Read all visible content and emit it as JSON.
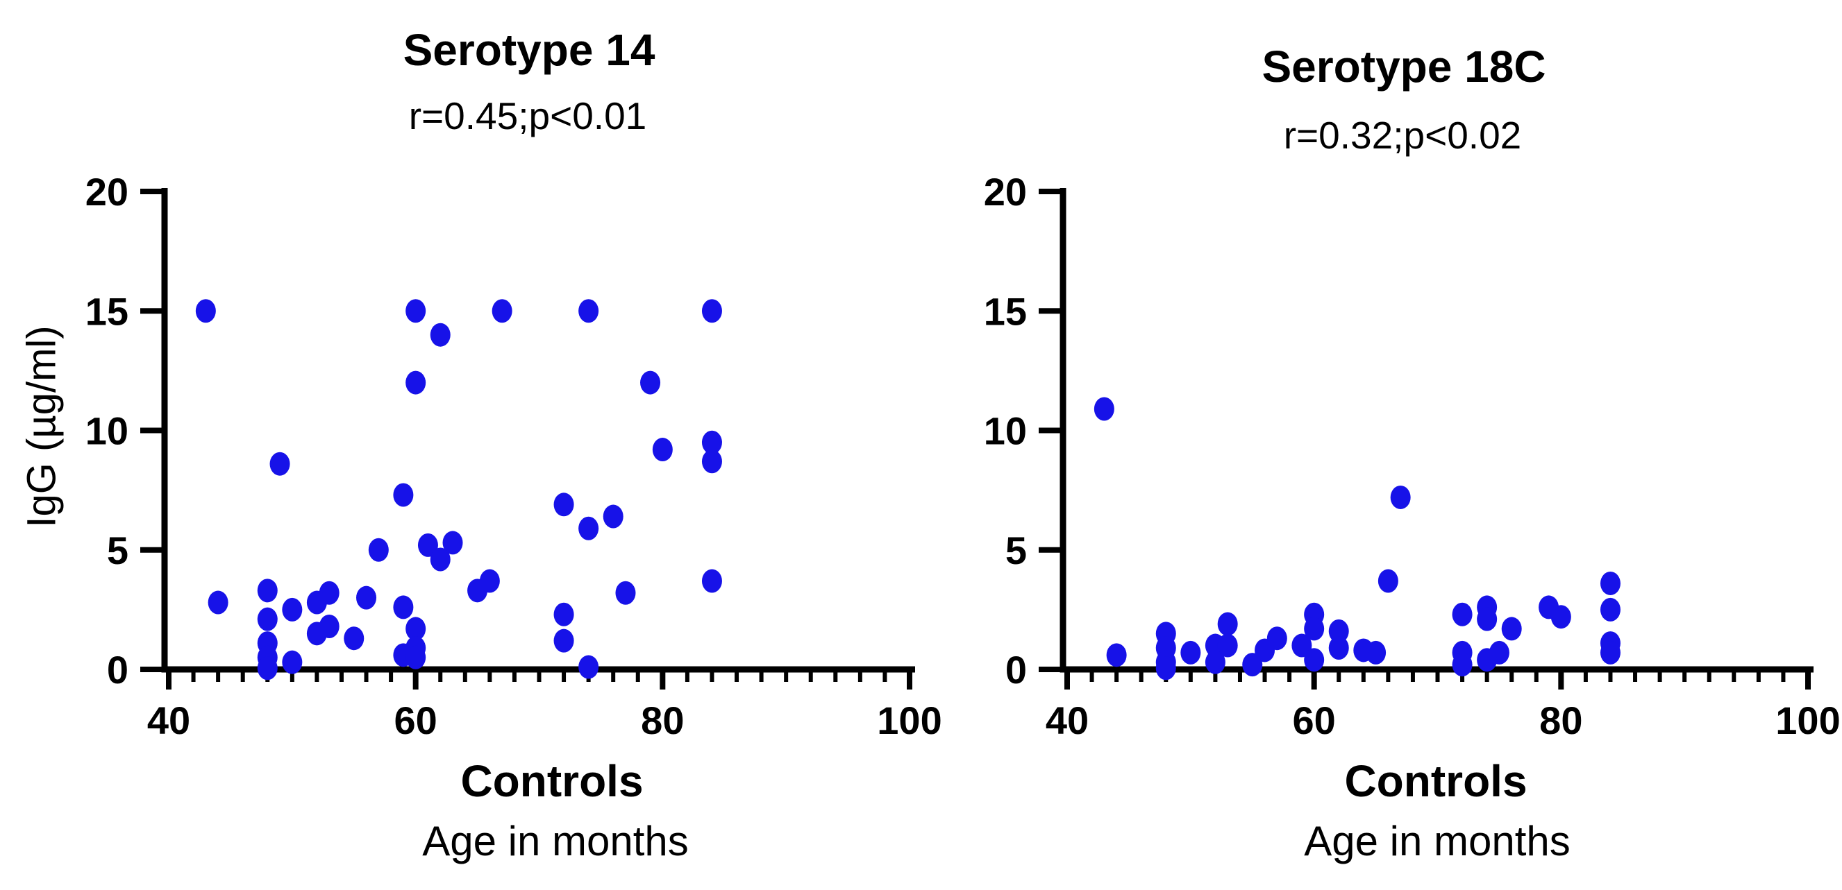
{
  "page": {
    "background": "#ffffff",
    "description": "Two scatter plots of anti-pneumococcal IgG versus age in control children"
  },
  "colors": {
    "dot": "#1712e8",
    "axis": "#000000",
    "text": "#000000"
  },
  "chart_data": [
    {
      "type": "scatter",
      "title": "Serotype 14",
      "subtitle": "r=0.45;p<0.01",
      "xlabel_primary": "Controls",
      "xlabel_secondary": "Age in months",
      "ylabel": "IgG (µg/ml)",
      "xlim": [
        40,
        100
      ],
      "ylim": [
        0,
        20
      ],
      "x_major_ticks": [
        40,
        60,
        80,
        100
      ],
      "x_minor_tick_step": 2,
      "y_major_ticks": [
        0,
        5,
        10,
        15,
        20
      ],
      "grid": false,
      "legend": "none",
      "marker": "filled-circle",
      "points": [
        [
          43,
          15
        ],
        [
          60,
          15
        ],
        [
          67,
          15
        ],
        [
          74,
          15
        ],
        [
          84,
          15
        ],
        [
          62,
          14
        ],
        [
          60,
          12
        ],
        [
          79,
          12
        ],
        [
          84,
          9.5
        ],
        [
          80,
          9.2
        ],
        [
          84,
          8.7
        ],
        [
          49,
          8.6
        ],
        [
          59,
          7.3
        ],
        [
          72,
          6.9
        ],
        [
          76,
          6.4
        ],
        [
          74,
          5.9
        ],
        [
          63,
          5.3
        ],
        [
          61,
          5.2
        ],
        [
          57,
          5.0
        ],
        [
          62,
          4.6
        ],
        [
          66,
          3.7
        ],
        [
          84,
          3.7
        ],
        [
          65,
          3.3
        ],
        [
          48,
          3.3
        ],
        [
          53,
          3.2
        ],
        [
          77,
          3.2
        ],
        [
          56,
          3.0
        ],
        [
          52,
          2.8
        ],
        [
          44,
          2.8
        ],
        [
          59,
          2.6
        ],
        [
          50,
          2.5
        ],
        [
          72,
          2.3
        ],
        [
          48,
          2.1
        ],
        [
          53,
          1.8
        ],
        [
          60,
          1.7
        ],
        [
          52,
          1.5
        ],
        [
          55,
          1.3
        ],
        [
          72,
          1.2
        ],
        [
          48,
          1.1
        ],
        [
          60,
          0.9
        ],
        [
          59,
          0.6
        ],
        [
          48,
          0.5
        ],
        [
          60,
          0.5
        ],
        [
          50,
          0.3
        ],
        [
          74,
          0.1
        ],
        [
          48,
          0.05
        ]
      ]
    },
    {
      "type": "scatter",
      "title": "Serotype 18C",
      "subtitle": "r=0.32;p<0.02",
      "xlabel_primary": "Controls",
      "xlabel_secondary": "Age in months",
      "ylabel": "",
      "xlim": [
        40,
        100
      ],
      "ylim": [
        0,
        20
      ],
      "x_major_ticks": [
        40,
        60,
        80,
        100
      ],
      "x_minor_tick_step": 2,
      "y_major_ticks": [
        0,
        5,
        10,
        15,
        20
      ],
      "grid": false,
      "legend": "none",
      "marker": "filled-circle",
      "points": [
        [
          43,
          10.9
        ],
        [
          67,
          7.2
        ],
        [
          66,
          3.7
        ],
        [
          84,
          3.6
        ],
        [
          79,
          2.6
        ],
        [
          74,
          2.6
        ],
        [
          84,
          2.5
        ],
        [
          60,
          2.3
        ],
        [
          72,
          2.3
        ],
        [
          80,
          2.2
        ],
        [
          74,
          2.1
        ],
        [
          53,
          1.9
        ],
        [
          60,
          1.7
        ],
        [
          76,
          1.7
        ],
        [
          62,
          1.6
        ],
        [
          48,
          1.5
        ],
        [
          57,
          1.3
        ],
        [
          84,
          1.1
        ],
        [
          52,
          1.0
        ],
        [
          53,
          1.0
        ],
        [
          59,
          1.0
        ],
        [
          48,
          0.9
        ],
        [
          62,
          0.9
        ],
        [
          56,
          0.8
        ],
        [
          64,
          0.8
        ],
        [
          84,
          0.7
        ],
        [
          50,
          0.7
        ],
        [
          65,
          0.7
        ],
        [
          72,
          0.7
        ],
        [
          75,
          0.7
        ],
        [
          44,
          0.6
        ],
        [
          74,
          0.4
        ],
        [
          60,
          0.4
        ],
        [
          48,
          0.3
        ],
        [
          52,
          0.3
        ],
        [
          72,
          0.2
        ],
        [
          55,
          0.2
        ],
        [
          48,
          0.05
        ]
      ]
    }
  ]
}
